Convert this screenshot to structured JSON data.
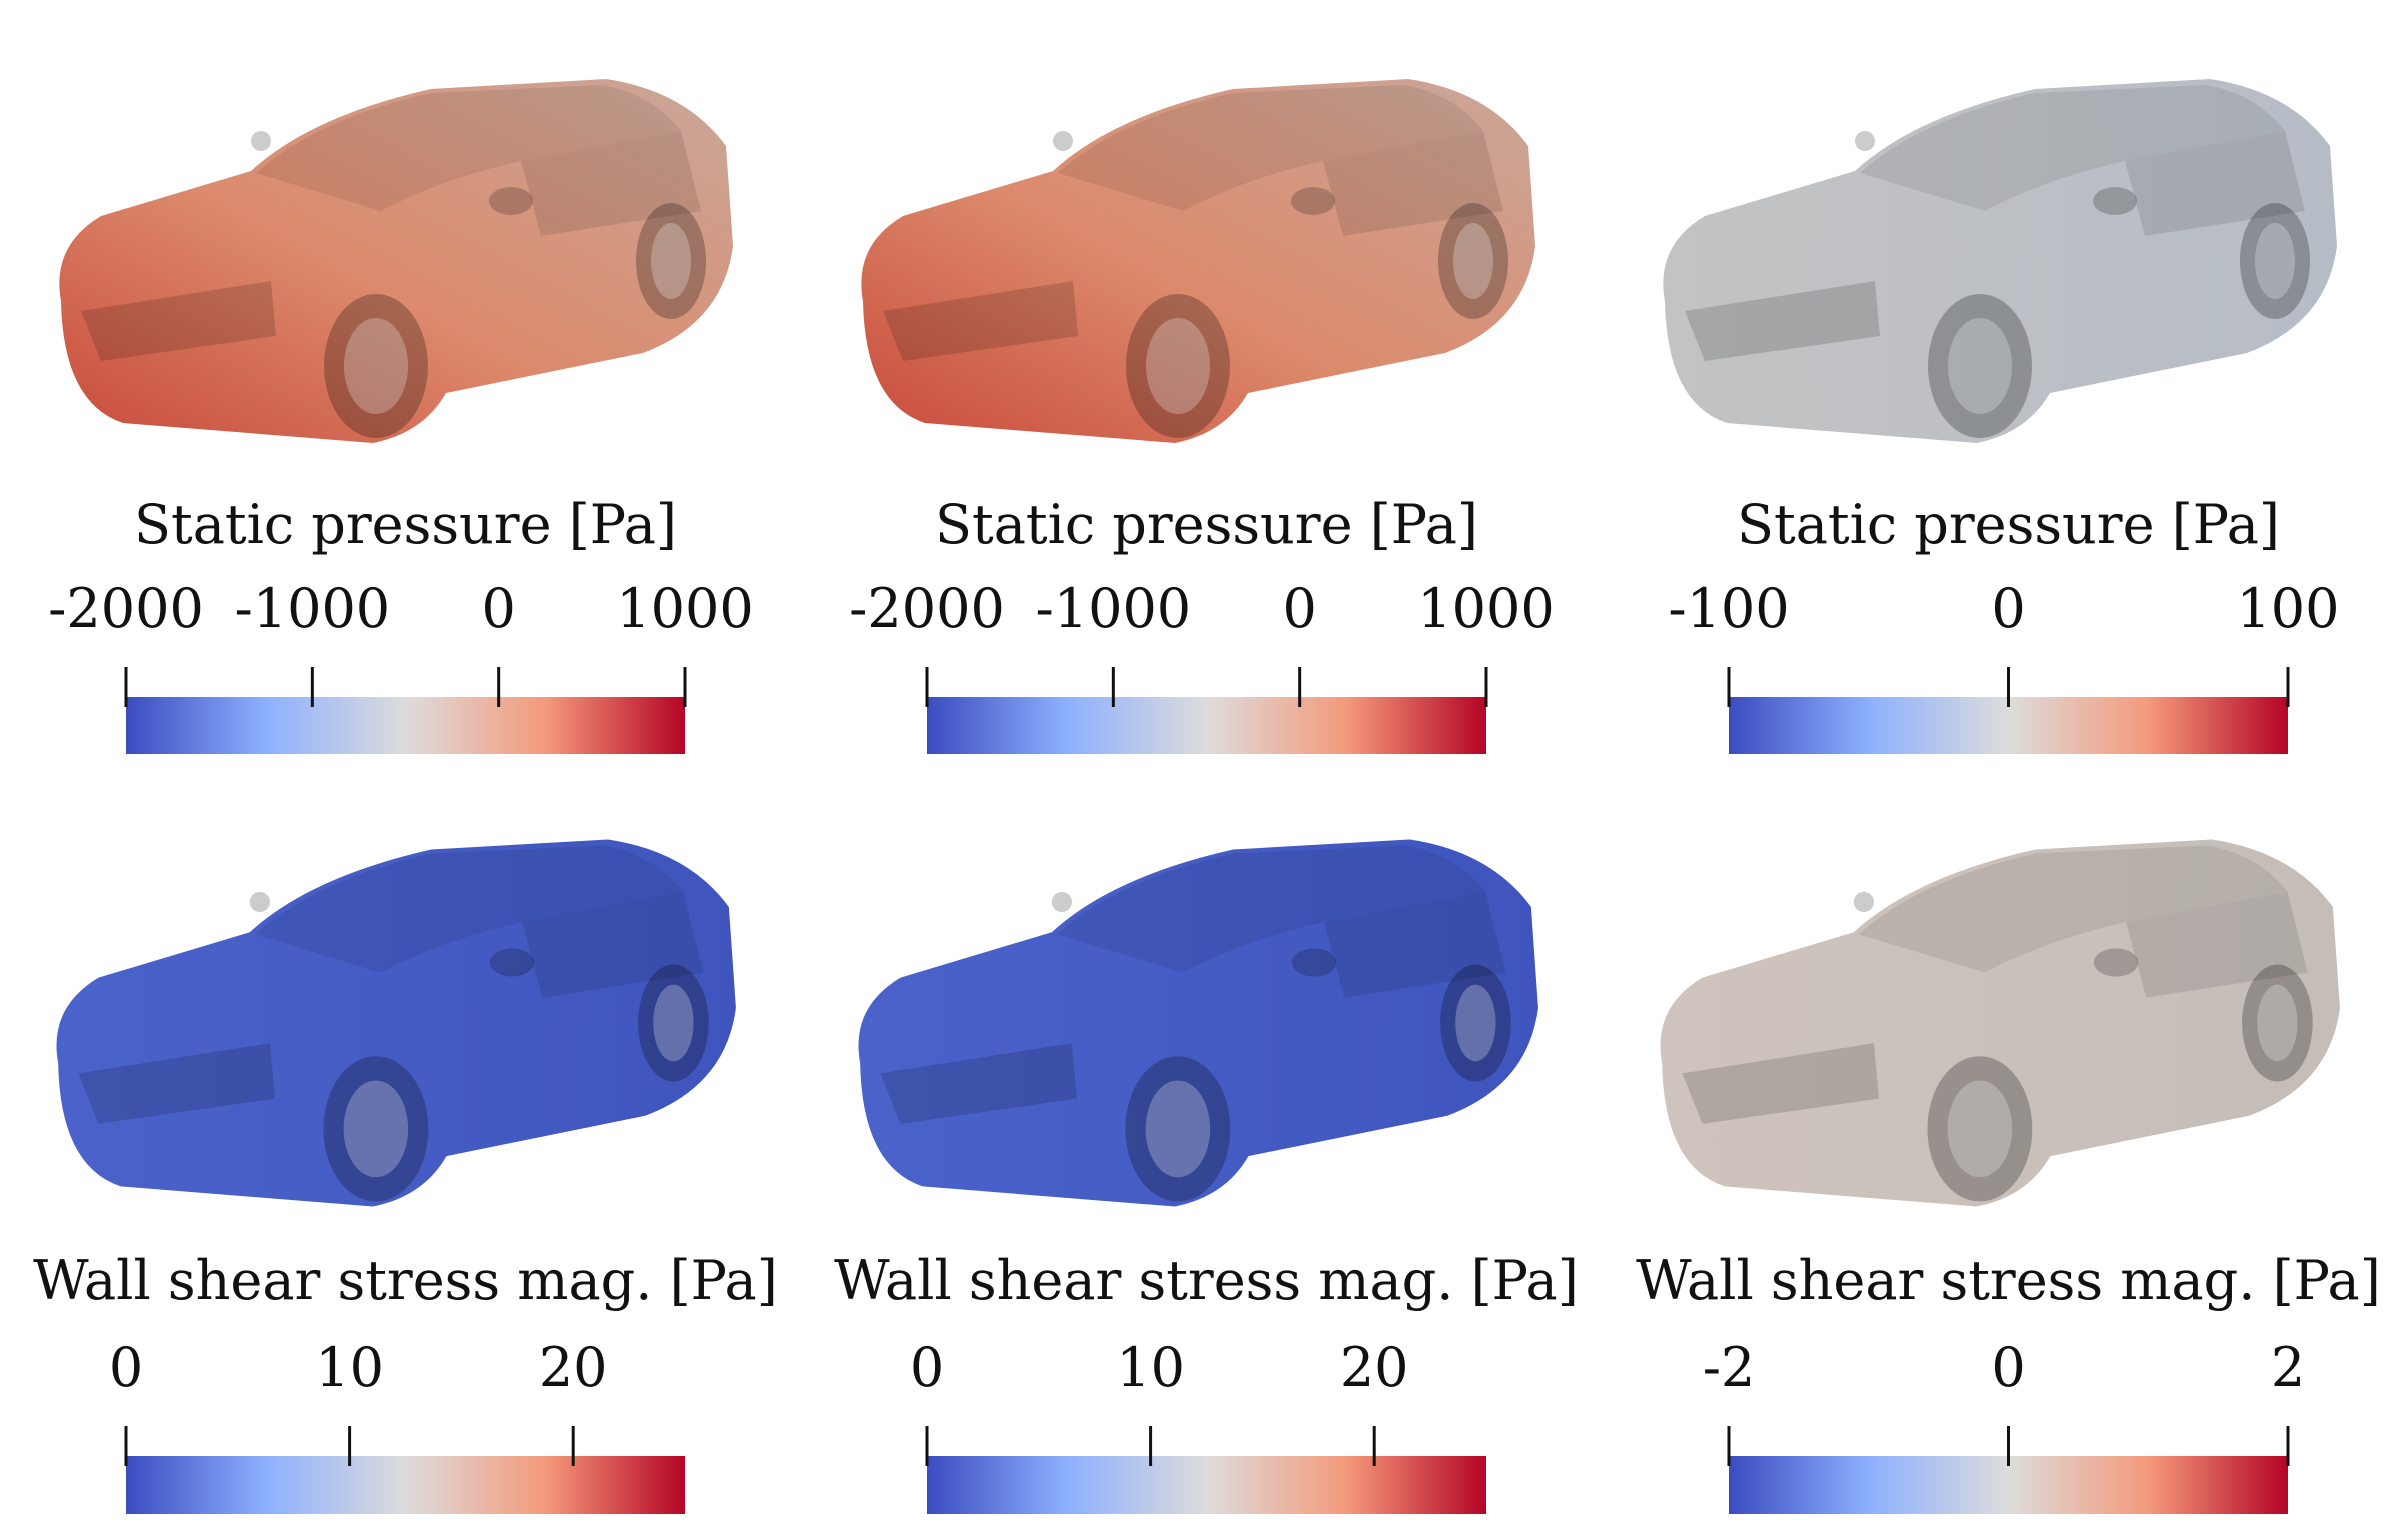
{
  "panels": [
    {
      "label": "Static pressure [Pa]",
      "ticks": [
        -2000,
        -1000,
        0,
        1000
      ],
      "limits": [
        -2000,
        1000
      ]
    },
    {
      "label": "Static pressure [Pa]",
      "ticks": [
        -2000,
        -1000,
        0,
        1000
      ],
      "limits": [
        -2000,
        1000
      ]
    },
    {
      "label": "Static pressure [Pa]",
      "ticks": [
        -100,
        0,
        100
      ],
      "limits": [
        -100,
        100
      ]
    },
    {
      "label": "Wall shear stress mag. [Pa]",
      "ticks": [
        0,
        10,
        20
      ],
      "limits": [
        0,
        25
      ]
    },
    {
      "label": "Wall shear stress mag. [Pa]",
      "ticks": [
        0,
        10,
        20
      ],
      "limits": [
        0,
        25
      ]
    },
    {
      "label": "Wall shear stress mag. [Pa]",
      "ticks": [
        -2,
        0,
        2
      ],
      "limits": [
        -2,
        2
      ]
    }
  ]
}
